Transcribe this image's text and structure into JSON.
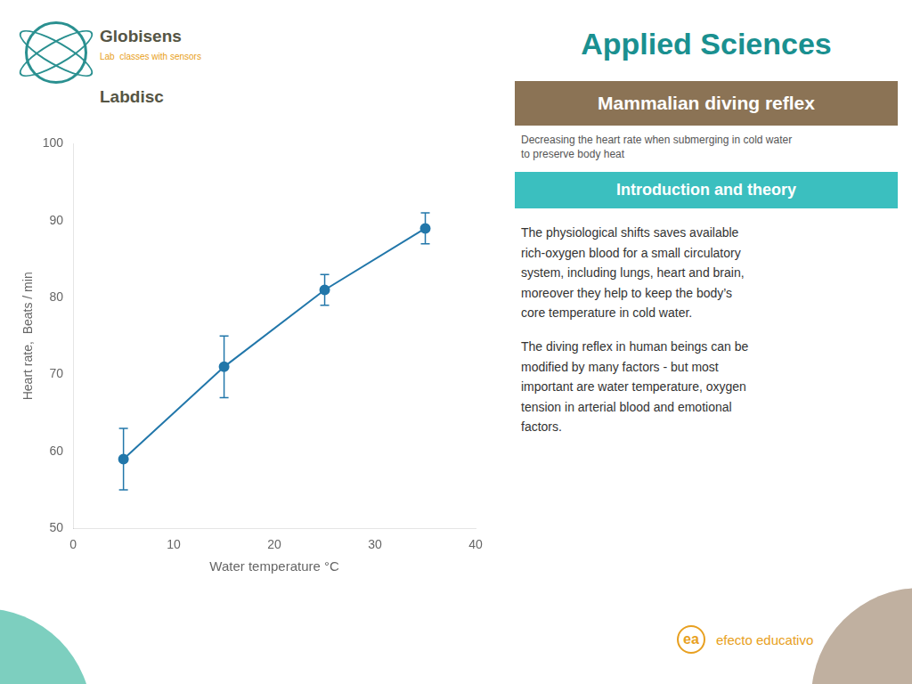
{
  "chart_data": {
    "type": "line",
    "title": "Mammalian diving reflex",
    "subtitle": "Decreasing the heart rate when submerging in cold water\nto preserve body heat",
    "annotations": [
      "Applied Sciences",
      "Introduction and theory",
      "The physiological shifts saves available\nrich-oxygen blood for a small circulatory\nsystem, including lungs, heart and brain,\nmoreover they help to keep the body’s\ncore temperature in cold water.",
      "The diving reflex in human beings can be\nmodified by many factors - but most\nimportant are water temperature, oxygen\ntension in arterial blood and emotional\nfactors.",
      "Globisens",
      "Lab  classes with sensors",
      "Labdisc",
      "efecto educativo",
      "ea"
    ],
    "x_label": "Water temperature °C",
    "y_label": "Heart rate,  Beats / min",
    "x": [
      5,
      15,
      25,
      35
    ],
    "values": [
      59,
      71,
      81,
      89
    ],
    "errors": [
      4,
      4,
      2,
      2
    ],
    "color": "#2277aa",
    "marker": "circle",
    "line_style": "solid",
    "xlim": [
      0,
      40
    ],
    "ylim": [
      50,
      100
    ],
    "xticks": [
      0,
      10,
      20,
      30,
      40
    ],
    "yticks": [
      50,
      60,
      70,
      80,
      90,
      100
    ],
    "grid": false
  }
}
